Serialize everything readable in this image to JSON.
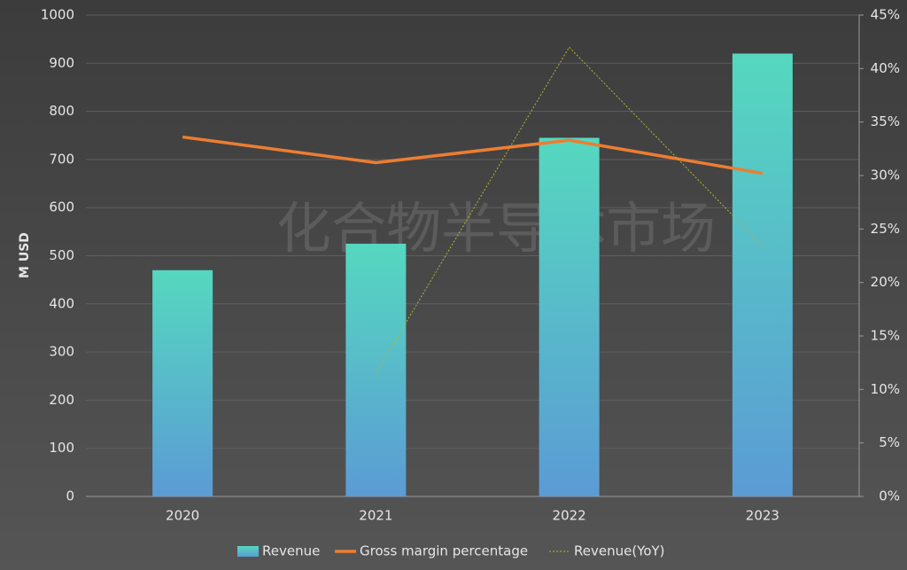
{
  "chart_data": {
    "type": "bar",
    "watermark": "化合物半导体市场",
    "y_label": "M USD",
    "categories": [
      "2020",
      "2021",
      "2022",
      "2023"
    ],
    "series": [
      {
        "name": "Revenue",
        "type": "bar",
        "color": "#55d8bf",
        "values": [
          470,
          525,
          745,
          920
        ]
      },
      {
        "name": "Gross margin percentage",
        "type": "line",
        "axis": "y2",
        "color": "#ed7d31",
        "values": [
          33.6,
          31.2,
          33.3,
          30.2
        ]
      },
      {
        "name": "Revenue(YoY)",
        "type": "line",
        "axis": "y2",
        "color": "#b5b82a",
        "line_style": "dotted",
        "values": [
          null,
          11.5,
          42.0,
          23.4
        ]
      }
    ],
    "ylim": [
      0,
      1000
    ],
    "yticks": [
      0,
      100,
      200,
      300,
      400,
      500,
      600,
      700,
      800,
      900,
      1000
    ],
    "y2lim": [
      0,
      45
    ],
    "y2ticks": [
      {
        "value": 0,
        "label": "0%"
      },
      {
        "value": 5,
        "label": "5%"
      },
      {
        "value": 10,
        "label": "10%"
      },
      {
        "value": 15,
        "label": "15%"
      },
      {
        "value": 20,
        "label": "20%"
      },
      {
        "value": 25,
        "label": "25%"
      },
      {
        "value": 30,
        "label": "30%"
      },
      {
        "value": 35,
        "label": "35%"
      },
      {
        "value": 40,
        "label": "40%"
      },
      {
        "value": 45,
        "label": "45%"
      }
    ],
    "grid": true,
    "legend": "bottom"
  }
}
